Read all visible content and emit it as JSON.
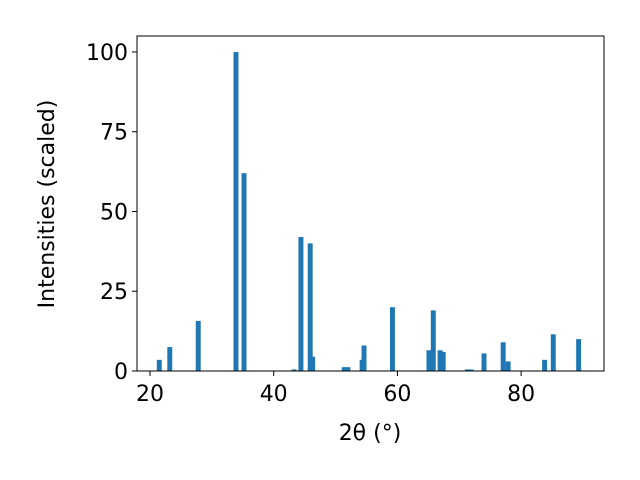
{
  "chart_data": {
    "type": "bar",
    "xlabel": "2θ (°)",
    "ylabel": "Intensities (scaled)",
    "x": [
      21.5,
      23.2,
      27.8,
      33.9,
      35.2,
      43.3,
      44.4,
      45.9,
      46.3,
      51.4,
      52.0,
      54.3,
      54.6,
      59.2,
      65.1,
      65.8,
      66.9,
      67.4,
      71.3,
      71.9,
      74.0,
      77.1,
      77.9,
      83.8,
      85.2,
      89.3
    ],
    "values": [
      3.5,
      7.5,
      15.7,
      100,
      62,
      0.5,
      42,
      40,
      4.5,
      1.2,
      1.2,
      3.5,
      8,
      20,
      6.5,
      19,
      6.5,
      6,
      0.5,
      0.5,
      5.5,
      9,
      3,
      3.5,
      11.5,
      10
    ],
    "color": "#1f77b4",
    "xlim": [
      17.9,
      93.4
    ],
    "xticks": [
      20,
      40,
      60,
      80
    ],
    "ylim": [
      0,
      105
    ],
    "yticks": [
      0,
      25,
      50,
      75,
      100
    ],
    "grid": false
  }
}
